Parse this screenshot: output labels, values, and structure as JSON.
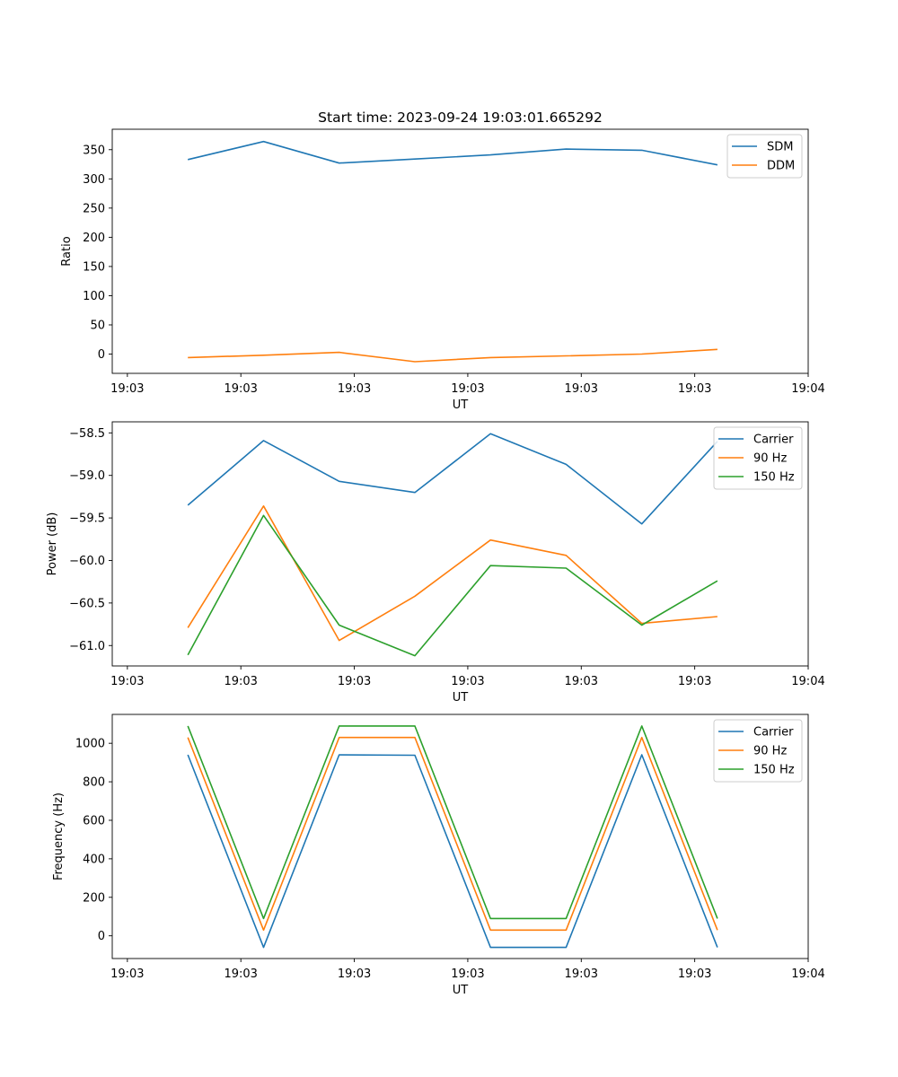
{
  "title": "Start time: 2023-09-24 19:03:01.665292",
  "chart_data": [
    {
      "type": "line",
      "title": "Start time: 2023-09-24 19:03:01.665292",
      "xlabel": "UT",
      "ylabel": "Ratio",
      "x": [
        0.5,
        1.0,
        1.5,
        2.0,
        2.5,
        3.0,
        3.5,
        4.0
      ],
      "xlim": [
        0.0,
        4.6
      ],
      "xticks": [
        0.1,
        0.85,
        1.6,
        2.35,
        3.1,
        3.85,
        4.6
      ],
      "xtick_labels": [
        "19:03",
        "19:03",
        "19:03",
        "19:03",
        "19:03",
        "19:03",
        "19:04"
      ],
      "ylim": [
        -33,
        385
      ],
      "yticks": [
        0,
        50,
        100,
        150,
        200,
        250,
        300,
        350
      ],
      "ytick_labels": [
        "0",
        "50",
        "100",
        "150",
        "200",
        "250",
        "300",
        "350"
      ],
      "legend": "top-right",
      "series": [
        {
          "name": "SDM",
          "color": "#1f77b4",
          "values": [
            333,
            364,
            327,
            334,
            341,
            351,
            349,
            324
          ]
        },
        {
          "name": "DDM",
          "color": "#ff7f0e",
          "values": [
            -6,
            -2,
            3,
            -13,
            -6,
            -3,
            0,
            8
          ]
        }
      ]
    },
    {
      "type": "line",
      "title": "",
      "xlabel": "UT",
      "ylabel": "Power (dB)",
      "x": [
        0.5,
        1.0,
        1.5,
        2.0,
        2.5,
        3.0,
        3.5,
        4.0
      ],
      "xlim": [
        0.0,
        4.6
      ],
      "xticks": [
        0.1,
        0.85,
        1.6,
        2.35,
        3.1,
        3.85,
        4.6
      ],
      "xtick_labels": [
        "19:03",
        "19:03",
        "19:03",
        "19:03",
        "19:03",
        "19:03",
        "19:04"
      ],
      "ylim": [
        -61.24,
        -58.37
      ],
      "yticks": [
        -61.0,
        -60.5,
        -60.0,
        -59.5,
        -59.0,
        -58.5
      ],
      "ytick_labels": [
        "−61.0",
        "−60.5",
        "−60.0",
        "−59.5",
        "−59.0",
        "−58.5"
      ],
      "legend": "top-right",
      "series": [
        {
          "name": "Carrier",
          "color": "#1f77b4",
          "values": [
            -59.35,
            -58.59,
            -59.07,
            -59.2,
            -58.51,
            -58.87,
            -59.57,
            -58.6
          ]
        },
        {
          "name": "90 Hz",
          "color": "#ff7f0e",
          "values": [
            -60.79,
            -59.36,
            -60.94,
            -60.42,
            -59.76,
            -59.94,
            -60.74,
            -60.66
          ]
        },
        {
          "name": "150 Hz",
          "color": "#2ca02c",
          "values": [
            -61.11,
            -59.47,
            -60.76,
            -61.12,
            -60.06,
            -60.09,
            -60.76,
            -60.24
          ]
        }
      ]
    },
    {
      "type": "line",
      "title": "",
      "xlabel": "UT",
      "ylabel": "Frequency (Hz)",
      "x": [
        0.5,
        1.0,
        1.5,
        2.0,
        2.5,
        3.0,
        3.5,
        4.0
      ],
      "xlim": [
        0.0,
        4.6
      ],
      "xticks": [
        0.1,
        0.85,
        1.6,
        2.35,
        3.1,
        3.85,
        4.6
      ],
      "xtick_labels": [
        "19:03",
        "19:03",
        "19:03",
        "19:03",
        "19:03",
        "19:03",
        "19:04"
      ],
      "ylim": [
        -118,
        1150
      ],
      "yticks": [
        0,
        200,
        400,
        600,
        800,
        1000
      ],
      "ytick_labels": [
        "0",
        "200",
        "400",
        "600",
        "800",
        "1000"
      ],
      "legend": "top-right",
      "series": [
        {
          "name": "Carrier",
          "color": "#1f77b4",
          "values": [
            940,
            -60,
            940,
            938,
            -60,
            -60,
            940,
            -60
          ]
        },
        {
          "name": "90 Hz",
          "color": "#ff7f0e",
          "values": [
            1030,
            30,
            1030,
            1030,
            30,
            30,
            1030,
            30
          ]
        },
        {
          "name": "150 Hz",
          "color": "#2ca02c",
          "values": [
            1090,
            90,
            1090,
            1090,
            90,
            90,
            1090,
            90
          ]
        }
      ]
    }
  ]
}
